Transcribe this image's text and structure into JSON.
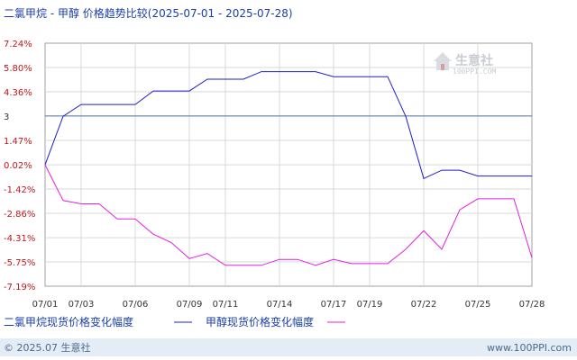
{
  "header": {
    "title": "二氯甲烷 - 甲醇 价格趋势比较(2025-07-01 - 2025-07-28)"
  },
  "watermark": {
    "name": "生意社",
    "url": "100PPI.COM"
  },
  "legend": {
    "item1": "二氯甲烷现货价格变化幅度",
    "item2": "甲醇现货价格变化幅度"
  },
  "footer": {
    "left": "© 2025.07 生意社",
    "right": "www.100PPI.com"
  },
  "colors": {
    "series1": "#1f1fcc",
    "series2": "#e61ee0",
    "ref_line": "#4a6f9a",
    "ytick": "#c0161b",
    "grid": "#d9d9d9",
    "footer_bar": "#e4ecf6"
  },
  "chart_data": {
    "type": "line",
    "title": "二氯甲烷 - 甲醇 价格趋势比较(2025-07-01 - 2025-07-28)",
    "ylim": [
      -7.19,
      7.24
    ],
    "y_ticks": [
      "7.24%",
      "5.80%",
      "4.36%",
      "3",
      "1.47%",
      "0.02%",
      "-1.42%",
      "-2.86%",
      "-4.31%",
      "-5.75%",
      "-7.19%"
    ],
    "y_tick_values": [
      7.24,
      5.8,
      4.36,
      2.92,
      1.47,
      0.02,
      -1.42,
      -2.86,
      -4.31,
      -5.75,
      -7.19
    ],
    "x_ticks": [
      "07/01",
      "07/03",
      "07/06",
      "07/09",
      "07/11",
      "07/14",
      "07/17",
      "07/19",
      "07/22",
      "07/25",
      "07/28"
    ],
    "reference_line": 2.92,
    "grid": true,
    "legend_position": "bottom",
    "series": [
      {
        "name": "二氯甲烷现货价格变化幅度",
        "points": [
          [
            "07/01",
            0.02
          ],
          [
            "07/02",
            2.9
          ],
          [
            "07/03",
            3.6
          ],
          [
            "07/04",
            3.6
          ],
          [
            "07/06",
            3.6
          ],
          [
            "07/07",
            4.4
          ],
          [
            "07/09",
            4.4
          ],
          [
            "07/10",
            5.1
          ],
          [
            "07/11",
            5.1
          ],
          [
            "07/12",
            5.1
          ],
          [
            "07/13",
            5.55
          ],
          [
            "07/14",
            5.55
          ],
          [
            "07/16",
            5.55
          ],
          [
            "07/17",
            5.25
          ],
          [
            "07/19",
            5.25
          ],
          [
            "07/20",
            5.25
          ],
          [
            "07/21",
            2.9
          ],
          [
            "07/22",
            -0.8
          ],
          [
            "07/23",
            -0.3
          ],
          [
            "07/24",
            -0.3
          ],
          [
            "07/25",
            -0.65
          ],
          [
            "07/27",
            -0.65
          ],
          [
            "07/28",
            -0.65
          ]
        ]
      },
      {
        "name": "甲醇现货价格变化幅度",
        "points": [
          [
            "07/01",
            0.02
          ],
          [
            "07/02",
            -2.1
          ],
          [
            "07/03",
            -2.3
          ],
          [
            "07/04",
            -2.3
          ],
          [
            "07/05",
            -3.2
          ],
          [
            "07/06",
            -3.2
          ],
          [
            "07/07",
            -4.1
          ],
          [
            "07/08",
            -4.6
          ],
          [
            "07/09",
            -5.55
          ],
          [
            "07/10",
            -5.25
          ],
          [
            "07/11",
            -5.95
          ],
          [
            "07/12",
            -5.95
          ],
          [
            "07/13",
            -5.95
          ],
          [
            "07/14",
            -5.6
          ],
          [
            "07/15",
            -5.6
          ],
          [
            "07/16",
            -5.95
          ],
          [
            "07/17",
            -5.6
          ],
          [
            "07/18",
            -5.85
          ],
          [
            "07/19",
            -5.85
          ],
          [
            "07/20",
            -5.85
          ],
          [
            "07/21",
            -5.0
          ],
          [
            "07/22",
            -3.9
          ],
          [
            "07/23",
            -5.0
          ],
          [
            "07/24",
            -2.65
          ],
          [
            "07/25",
            -2.0
          ],
          [
            "07/26",
            -2.0
          ],
          [
            "07/27",
            -2.0
          ],
          [
            "07/28",
            -5.5
          ]
        ]
      }
    ]
  }
}
